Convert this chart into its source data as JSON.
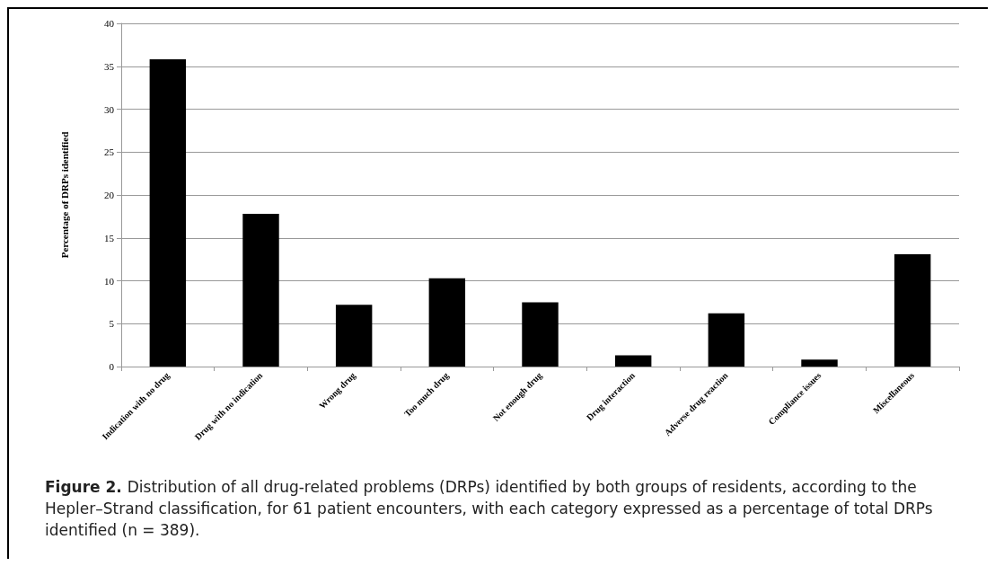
{
  "chart_data": {
    "type": "bar",
    "categories": [
      "Indication with no drug",
      "Drug with no indication",
      "Wrong drug",
      "Too much drug",
      "Not enough drug",
      "Drug interaction",
      "Adverse drug reaction",
      "Compliance issues",
      "Miscellaneous"
    ],
    "values": [
      35.8,
      17.8,
      7.2,
      10.3,
      7.5,
      1.3,
      6.2,
      0.8,
      13.1
    ],
    "color": "#000000",
    "ylabel": "Percentage of DRPs identified",
    "ylim": [
      0,
      40
    ],
    "yticks": [
      0,
      5,
      10,
      15,
      20,
      25,
      30,
      35,
      40
    ],
    "grid": "y",
    "annotations": [
      "Figure 2.",
      "Distribution of all drug-related problems (DRPs) identified by both groups of residents, according to the Hepler–Strand classification, for 61 patient encounters, with each category expressed as a percentage of total DRPs identified (n = 389)."
    ]
  }
}
